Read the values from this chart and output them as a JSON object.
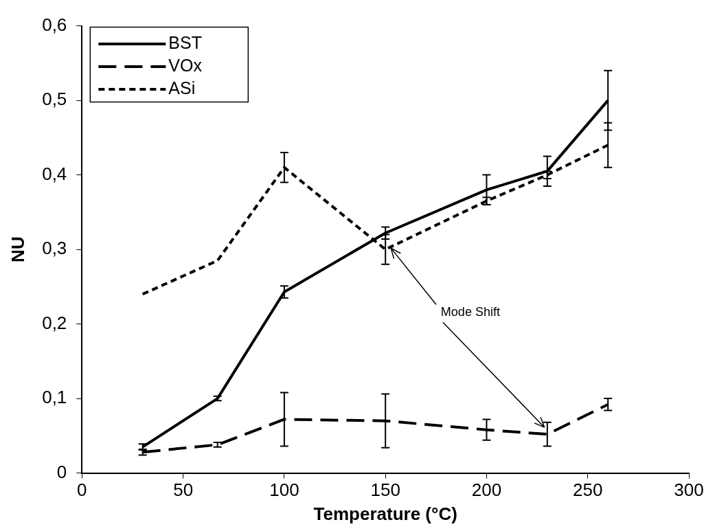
{
  "chart_data": {
    "type": "line",
    "xlabel": "Temperature (°C)",
    "ylabel": "NU",
    "x": [
      30,
      67,
      100,
      150,
      200,
      230,
      260
    ],
    "series": [
      {
        "name": "BST",
        "color": "#000000",
        "line_style": "solid",
        "values": [
          0.035,
          0.1,
          0.243,
          0.322,
          0.38,
          0.405,
          0.5
        ],
        "errors": [
          0.004,
          0.003,
          0.008,
          0.008,
          0.02,
          0.02,
          0.04
        ]
      },
      {
        "name": "VOx",
        "color": "#000000",
        "line_style": "dashed",
        "values": [
          0.028,
          0.038,
          0.072,
          0.07,
          0.058,
          0.052,
          0.092
        ],
        "errors": [
          0.004,
          0.003,
          0.036,
          0.036,
          0.014,
          0.016,
          0.008
        ]
      },
      {
        "name": "ASi",
        "color": "#000000",
        "line_style": "dotted",
        "values": [
          0.24,
          0.285,
          0.41,
          0.3,
          0.365,
          0.4,
          0.44
        ],
        "errors": [
          null,
          null,
          0.02,
          0.02,
          0.005,
          0.005,
          0.03
        ]
      }
    ],
    "xlim": [
      0,
      300
    ],
    "xticks": [
      0,
      50,
      100,
      150,
      200,
      250,
      300
    ],
    "ylim": [
      0,
      0.6
    ],
    "yticks": [
      {
        "value": 0,
        "label": "0"
      },
      {
        "value": 0.1,
        "label": "0,1"
      },
      {
        "value": 0.2,
        "label": "0,2"
      },
      {
        "value": 0.3,
        "label": "0,3"
      },
      {
        "value": 0.4,
        "label": "0,4"
      },
      {
        "value": 0.5,
        "label": "0,5"
      },
      {
        "value": 0.6,
        "label": "0,6"
      }
    ],
    "annotations": [
      {
        "text": "Mode Shift",
        "x": 150,
        "y": 0.3
      }
    ],
    "grid": false,
    "legend": "top left",
    "marker": "none"
  }
}
